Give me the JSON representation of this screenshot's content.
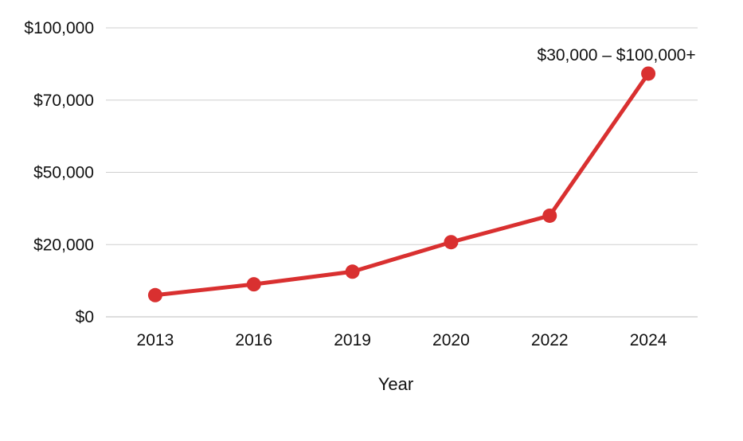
{
  "chart_data": {
    "type": "line",
    "title": "",
    "xlabel": "Year",
    "ylabel": "",
    "categories": [
      "2013",
      "2016",
      "2019",
      "2020",
      "2022",
      "2024"
    ],
    "values": [
      6000,
      9000,
      12500,
      21000,
      32000,
      81000
    ],
    "ylim": [
      0,
      100000
    ],
    "y_scale": "custom-labeled",
    "y_ticks": [
      {
        "label": "$0",
        "level": 0
      },
      {
        "label": "$20,000",
        "level": 1
      },
      {
        "label": "$50,000",
        "level": 2
      },
      {
        "label": "$70,000",
        "level": 3
      },
      {
        "label": "$100,000",
        "level": 4
      }
    ],
    "annotations": [
      {
        "text": "$30,000 – $100,000+",
        "category": "2024"
      }
    ],
    "grid": true,
    "legend": "none",
    "line_color": "#d93030"
  }
}
